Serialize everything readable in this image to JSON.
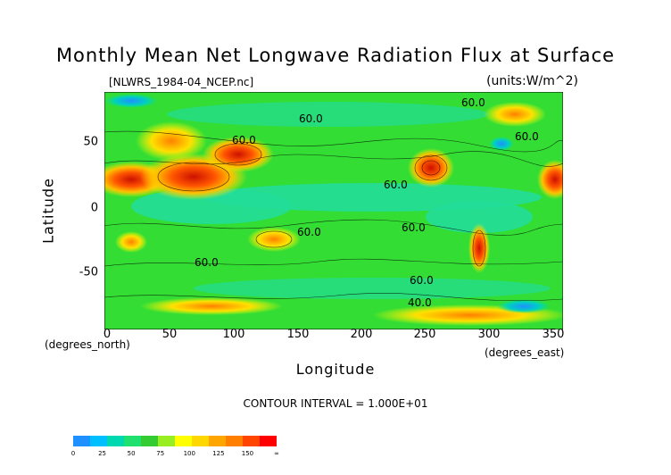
{
  "title": "Monthly Mean Net Longwave Radiation Flux at Surface",
  "subtitle": "[NLWRS_1984-04_NCEP.nc]",
  "units": "(units:W/m^2)",
  "contour_interval": "CONTOUR INTERVAL = 1.000E+01",
  "chart_data": {
    "type": "heatmap",
    "xlabel": "Longitude",
    "ylabel": "Latitude",
    "x_unit": "(degrees_east)",
    "y_unit": "(degrees_north)",
    "xlim": [
      0,
      360
    ],
    "ylim": [
      -90,
      90
    ],
    "x_ticks": [
      "0",
      "50",
      "100",
      "150",
      "200",
      "250",
      "300",
      "350"
    ],
    "y_ticks": [
      "50",
      "0",
      "-50"
    ],
    "contour_labels": [
      "60.0",
      "60.0",
      "60.0",
      "60.0",
      "60.0",
      "60.0",
      "60.0",
      "60.0",
      "40.0",
      "60.0"
    ],
    "colorbar": {
      "labels": [
        "0",
        "25",
        "50",
        "75",
        "100",
        "125",
        "150",
        "∞"
      ],
      "colors": [
        "#1e90ff",
        "#00bfff",
        "#00d8b0",
        "#20e070",
        "#33cc33",
        "#99ee22",
        "#ffff00",
        "#ffd700",
        "#ffa500",
        "#ff7f00",
        "#ff4500",
        "#ff0000"
      ]
    }
  }
}
